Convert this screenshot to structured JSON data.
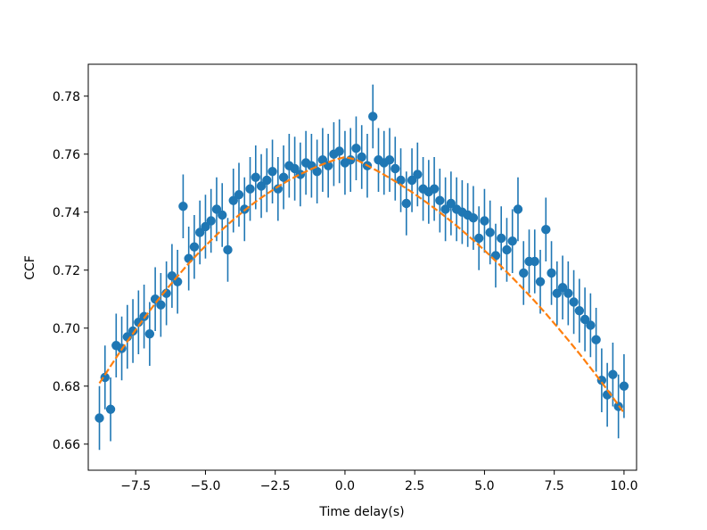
{
  "chart_data": {
    "type": "scatter",
    "title": "",
    "xlabel": "Time delay(s)",
    "ylabel": "CCF",
    "xlim": [
      -9.2,
      10.45
    ],
    "ylim": [
      0.651,
      0.791
    ],
    "x_ticks": [
      -7.5,
      -5.0,
      -2.5,
      0.0,
      2.5,
      5.0,
      7.5,
      10.0
    ],
    "x_tick_labels": [
      "−7.5",
      "−5.0",
      "−2.5",
      "0.0",
      "2.5",
      "5.0",
      "7.5",
      "10.0"
    ],
    "y_ticks": [
      0.66,
      0.68,
      0.7,
      0.72,
      0.74,
      0.76,
      0.78
    ],
    "y_tick_labels": [
      "0.66",
      "0.68",
      "0.70",
      "0.72",
      "0.74",
      "0.76",
      "0.78"
    ],
    "grid": false,
    "colors": {
      "points": "#1f77b4",
      "fit": "#ff7f0e"
    },
    "series": [
      {
        "kind": "scatter-errorbar",
        "x": [
          -8.8,
          -8.6,
          -8.4,
          -8.2,
          -8.0,
          -7.8,
          -7.6,
          -7.4,
          -7.2,
          -7.0,
          -6.8,
          -6.6,
          -6.4,
          -6.2,
          -6.0,
          -5.8,
          -5.6,
          -5.4,
          -5.2,
          -5.0,
          -4.8,
          -4.6,
          -4.4,
          -4.2,
          -4.0,
          -3.8,
          -3.6,
          -3.4,
          -3.2,
          -3.0,
          -2.8,
          -2.6,
          -2.4,
          -2.2,
          -2.0,
          -1.8,
          -1.6,
          -1.4,
          -1.2,
          -1.0,
          -0.8,
          -0.6,
          -0.4,
          -0.2,
          0.0,
          0.2,
          0.4,
          0.6,
          0.8,
          1.0,
          1.2,
          1.4,
          1.6,
          1.8,
          2.0,
          2.2,
          2.4,
          2.6,
          2.8,
          3.0,
          3.2,
          3.4,
          3.6,
          3.8,
          4.0,
          4.2,
          4.4,
          4.6,
          4.8,
          5.0,
          5.2,
          5.4,
          5.6,
          5.8,
          6.0,
          6.2,
          6.4,
          6.6,
          6.8,
          7.0,
          7.2,
          7.4,
          7.6,
          7.8,
          8.0,
          8.2,
          8.4,
          8.6,
          8.8,
          9.0,
          9.2,
          9.4,
          9.6,
          9.8,
          10.0
        ],
        "y": [
          0.669,
          0.683,
          0.672,
          0.694,
          0.693,
          0.697,
          0.699,
          0.702,
          0.704,
          0.698,
          0.71,
          0.708,
          0.712,
          0.718,
          0.716,
          0.742,
          0.724,
          0.728,
          0.733,
          0.735,
          0.737,
          0.741,
          0.739,
          0.727,
          0.744,
          0.746,
          0.741,
          0.748,
          0.752,
          0.749,
          0.751,
          0.754,
          0.748,
          0.752,
          0.756,
          0.755,
          0.753,
          0.757,
          0.756,
          0.754,
          0.758,
          0.756,
          0.76,
          0.761,
          0.757,
          0.758,
          0.762,
          0.759,
          0.756,
          0.773,
          0.758,
          0.757,
          0.758,
          0.755,
          0.751,
          0.743,
          0.751,
          0.753,
          0.748,
          0.747,
          0.748,
          0.744,
          0.741,
          0.743,
          0.741,
          0.74,
          0.739,
          0.738,
          0.731,
          0.737,
          0.733,
          0.725,
          0.731,
          0.727,
          0.73,
          0.741,
          0.719,
          0.723,
          0.723,
          0.716,
          0.734,
          0.719,
          0.712,
          0.714,
          0.712,
          0.709,
          0.706,
          0.703,
          0.701,
          0.696,
          0.682,
          0.677,
          0.684,
          0.673,
          0.68
        ],
        "error": 0.011
      },
      {
        "kind": "fit-line",
        "x": [
          -8.8,
          -8.4,
          -8.0,
          -7.6,
          -7.2,
          -6.8,
          -6.4,
          -6.0,
          -5.6,
          -5.2,
          -4.8,
          -4.4,
          -4.0,
          -3.6,
          -3.2,
          -2.8,
          -2.4,
          -2.0,
          -1.6,
          -1.2,
          -0.8,
          -0.4,
          0.0,
          0.4,
          0.8,
          1.2,
          1.6,
          2.0,
          2.4,
          2.8,
          3.2,
          3.6,
          4.0,
          4.4,
          4.8,
          5.2,
          5.6,
          6.0,
          6.4,
          6.8,
          7.2,
          7.6,
          8.0,
          8.4,
          8.8,
          9.2,
          9.6,
          10.0
        ],
        "y": [
          0.681,
          0.6869,
          0.6927,
          0.6981,
          0.7034,
          0.7085,
          0.7133,
          0.7179,
          0.7223,
          0.7264,
          0.7303,
          0.734,
          0.7374,
          0.7406,
          0.7436,
          0.7463,
          0.7488,
          0.7511,
          0.7531,
          0.7549,
          0.7565,
          0.7579,
          0.759,
          0.7581,
          0.7561,
          0.754,
          0.7518,
          0.7494,
          0.7469,
          0.7442,
          0.7414,
          0.7384,
          0.7353,
          0.732,
          0.7286,
          0.725,
          0.7213,
          0.7174,
          0.7134,
          0.7093,
          0.705,
          0.7005,
          0.6959,
          0.6912,
          0.6863,
          0.6813,
          0.6761,
          0.6708
        ]
      }
    ]
  }
}
